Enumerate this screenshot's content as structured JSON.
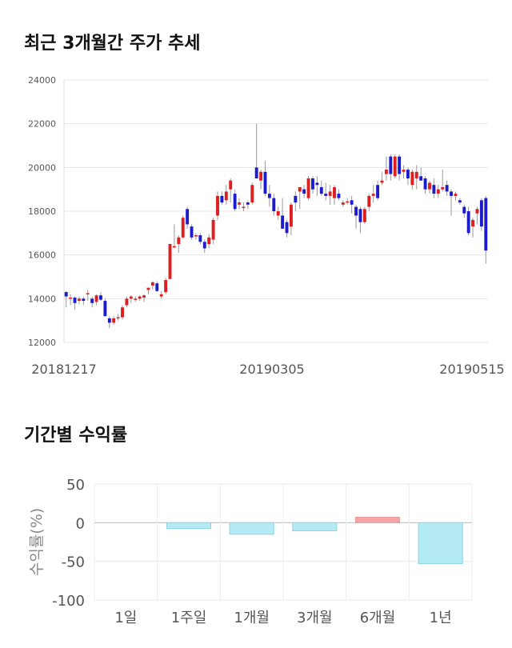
{
  "titles": {
    "price_trend": "최근 3개월간 주가 추세",
    "returns": "기간별 수익률"
  },
  "colors": {
    "up": "#dd1f1f",
    "down": "#1c1ccc",
    "positive_bar": "#f4a6a6",
    "negative_bar": "#b3eaf4",
    "negative_bar_edge": "#8fd3e2"
  },
  "chart_data": [
    {
      "type": "candlestick",
      "title": "최근 3개월간 주가 추세",
      "ylim": [
        12000,
        24000
      ],
      "y_ticks": [
        "24000",
        "22000",
        "20000",
        "18000",
        "16000",
        "14000",
        "12000"
      ],
      "x_labels": [
        "20181217",
        "20190305",
        "20190515"
      ],
      "grid": true,
      "candles": [
        [
          14300,
          14350,
          13600,
          14100
        ],
        [
          14000,
          14200,
          13700,
          14050
        ],
        [
          14050,
          14100,
          13500,
          13800
        ],
        [
          13900,
          14100,
          13750,
          14000
        ],
        [
          14000,
          14100,
          13700,
          13900
        ],
        [
          14200,
          14400,
          13900,
          14250
        ],
        [
          14000,
          14100,
          13600,
          13800
        ],
        [
          13850,
          14200,
          13700,
          14150
        ],
        [
          14150,
          14300,
          13900,
          13950
        ],
        [
          13900,
          14000,
          13200,
          13200
        ],
        [
          13100,
          13200,
          12650,
          12900
        ],
        [
          12900,
          13200,
          12800,
          13100
        ],
        [
          13100,
          13300,
          13000,
          13150
        ],
        [
          13150,
          13700,
          13050,
          13600
        ],
        [
          13700,
          14100,
          13600,
          14000
        ],
        [
          14000,
          14150,
          13800,
          14100
        ],
        [
          13950,
          14100,
          13850,
          14000
        ],
        [
          14000,
          14150,
          13900,
          14100
        ],
        [
          14050,
          14200,
          13850,
          14150
        ],
        [
          14400,
          14500,
          14200,
          14500
        ],
        [
          14600,
          14800,
          14400,
          14750
        ],
        [
          14700,
          14800,
          14300,
          14350
        ],
        [
          14100,
          14350,
          14000,
          14200
        ],
        [
          14300,
          14950,
          14200,
          14850
        ],
        [
          14900,
          16500,
          14900,
          16500
        ],
        [
          16400,
          17400,
          16300,
          16400
        ],
        [
          16500,
          16900,
          16100,
          16800
        ],
        [
          16800,
          17800,
          16750,
          17700
        ],
        [
          18100,
          18200,
          17200,
          17400
        ],
        [
          17300,
          17400,
          16700,
          16800
        ],
        [
          16850,
          17000,
          16700,
          16900
        ],
        [
          16900,
          17000,
          16500,
          16600
        ],
        [
          16600,
          16700,
          16100,
          16300
        ],
        [
          16500,
          16950,
          16300,
          16800
        ],
        [
          16700,
          17700,
          16500,
          17600
        ],
        [
          17800,
          18900,
          17600,
          18700
        ],
        [
          18700,
          18900,
          18300,
          18400
        ],
        [
          18500,
          19200,
          18300,
          18900
        ],
        [
          19000,
          19500,
          18400,
          19400
        ],
        [
          18800,
          19000,
          18000,
          18100
        ],
        [
          18300,
          18600,
          18100,
          18400
        ],
        [
          18200,
          18400,
          18000,
          18200
        ],
        [
          18400,
          18500,
          18100,
          18300
        ],
        [
          18400,
          19300,
          18300,
          19200
        ],
        [
          20000,
          22000,
          19500,
          19500
        ],
        [
          19400,
          19900,
          19000,
          19800
        ],
        [
          19800,
          20300,
          18700,
          18800
        ],
        [
          18800,
          19200,
          18200,
          18600
        ],
        [
          18600,
          18800,
          17800,
          18000
        ],
        [
          17800,
          18200,
          17600,
          18000
        ],
        [
          17800,
          18600,
          17200,
          17200
        ],
        [
          17500,
          17600,
          16800,
          17000
        ],
        [
          17300,
          18400,
          16900,
          18300
        ],
        [
          18700,
          18900,
          18000,
          18400
        ],
        [
          18900,
          19000,
          18100,
          19100
        ],
        [
          19000,
          19200,
          18600,
          18800
        ],
        [
          18600,
          19600,
          18500,
          19500
        ],
        [
          19500,
          19600,
          18800,
          19000
        ],
        [
          19300,
          19600,
          18700,
          19200
        ],
        [
          19100,
          19400,
          18700,
          18800
        ],
        [
          18800,
          19300,
          18500,
          18700
        ],
        [
          18700,
          19200,
          18300,
          18900
        ],
        [
          18600,
          19200,
          18300,
          19100
        ],
        [
          18800,
          19000,
          18500,
          18600
        ],
        [
          18300,
          18500,
          18200,
          18400
        ],
        [
          18400,
          18600,
          18300,
          18450
        ],
        [
          18500,
          18700,
          17900,
          18300
        ],
        [
          18200,
          18300,
          17200,
          17800
        ],
        [
          18100,
          18200,
          17000,
          17500
        ],
        [
          17500,
          18200,
          17400,
          18100
        ],
        [
          18200,
          18800,
          18000,
          18700
        ],
        [
          18700,
          19200,
          18400,
          18800
        ],
        [
          19200,
          19400,
          18500,
          18600
        ],
        [
          19300,
          19800,
          19200,
          19400
        ],
        [
          19700,
          20500,
          19400,
          19900
        ],
        [
          20500,
          20600,
          19400,
          19700
        ],
        [
          19600,
          20600,
          19500,
          20500
        ],
        [
          20500,
          20600,
          19400,
          19700
        ],
        [
          19800,
          20100,
          19500,
          19900
        ],
        [
          19900,
          20000,
          19200,
          19500
        ],
        [
          19200,
          19900,
          19000,
          19800
        ],
        [
          19500,
          20100,
          19000,
          19800
        ],
        [
          19600,
          20000,
          19400,
          19400
        ],
        [
          19500,
          19600,
          18800,
          19000
        ],
        [
          19000,
          19400,
          18800,
          19300
        ],
        [
          19200,
          19500,
          18600,
          18800
        ],
        [
          18800,
          19200,
          18600,
          19000
        ],
        [
          19000,
          19900,
          18900,
          19100
        ],
        [
          19200,
          19400,
          18700,
          18900
        ],
        [
          18900,
          19000,
          17800,
          18700
        ],
        [
          18700,
          18900,
          18500,
          18800
        ],
        [
          18500,
          18600,
          18300,
          18400
        ],
        [
          18200,
          18300,
          17700,
          17900
        ],
        [
          18000,
          18200,
          16900,
          17000
        ],
        [
          17300,
          17700,
          16800,
          17600
        ],
        [
          17900,
          18200,
          17400,
          18100
        ],
        [
          18500,
          18600,
          17100,
          17300
        ],
        [
          18600,
          18700,
          15600,
          16200
        ]
      ]
    },
    {
      "type": "bar",
      "title": "기간별 수익률",
      "ylabel": "수익률(%)",
      "categories": [
        "1일",
        "1주일",
        "1개월",
        "3개월",
        "6개월",
        "1년"
      ],
      "values": [
        0,
        -7.5,
        -15,
        -10.5,
        7,
        -53
      ],
      "ylim": [
        -100,
        50
      ],
      "y_ticks": [
        "50",
        "0",
        "-50",
        "-100"
      ],
      "grid": true
    }
  ]
}
